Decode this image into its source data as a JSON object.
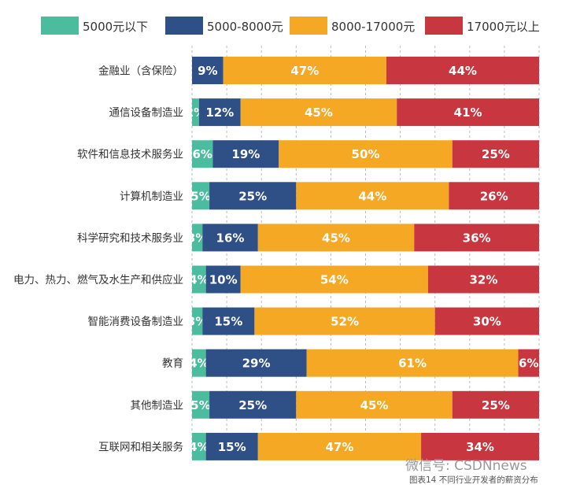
{
  "chart_data": {
    "type": "bar",
    "orientation": "horizontal",
    "stacked": true,
    "caption": "图表14 不同行业开发者的薪资分布",
    "watermark": "微信号: CSDNnews",
    "xlim": [
      0,
      100
    ],
    "unit": "%",
    "grid": true,
    "legend_position": "top",
    "categories": [
      "金融业（含保险）",
      "通信设备制造业",
      "软件和信息技术服务业",
      "计算机制造业",
      "科学研究和技术服务业",
      "电力、热力、燃气及水生产和供应业",
      "智能消费设备制造业",
      "教育",
      "其他制造业",
      "互联网和相关服务"
    ],
    "series": [
      {
        "name": "5000元以下",
        "color": "#4bbd9e",
        "values": [
          0,
          2,
          6,
          5,
          3,
          4,
          3,
          4,
          5,
          4
        ]
      },
      {
        "name": "5000-8000元",
        "color": "#2f5086",
        "values": [
          9,
          12,
          19,
          25,
          16,
          10,
          15,
          29,
          25,
          15
        ]
      },
      {
        "name": "8000-17000元",
        "color": "#f5a823",
        "values": [
          47,
          45,
          50,
          44,
          45,
          54,
          52,
          61,
          45,
          47
        ]
      },
      {
        "name": "17000元以上",
        "color": "#c8373f",
        "values": [
          44,
          41,
          25,
          26,
          36,
          32,
          30,
          6,
          25,
          34
        ]
      }
    ]
  }
}
